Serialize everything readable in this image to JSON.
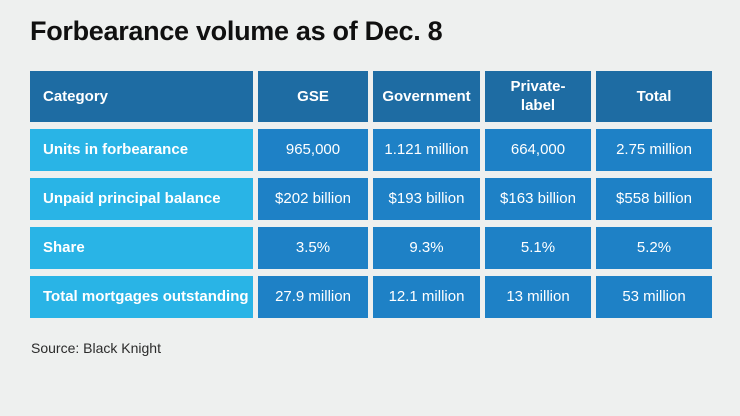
{
  "page": {
    "title": "Forbearance volume as of Dec. 8",
    "source": "Source: Black Knight"
  },
  "colors": {
    "background": "#eef0ef",
    "header_blue": "#1e6ca3",
    "category_cyan": "#29b4e6",
    "value_blue": "#1e81c6",
    "cell_text": "#ffffff",
    "title_text": "#101010"
  },
  "chart_data": {
    "type": "table",
    "title": "Forbearance volume as of Dec. 8",
    "columns": [
      "Category",
      "GSE",
      "Government",
      "Private-label",
      "Total"
    ],
    "rows": [
      {
        "label": "Units in forbearance",
        "values": [
          "965,000",
          "1.121 million",
          "664,000",
          "2.75 million"
        ]
      },
      {
        "label": "Unpaid principal balance",
        "values": [
          "$202 billion",
          "$193 billion",
          "$163 billion",
          "$558 billion"
        ]
      },
      {
        "label": "Share",
        "values": [
          "3.5%",
          "9.3%",
          "5.1%",
          "5.2%"
        ]
      },
      {
        "label": "Total mortgages outstanding",
        "values": [
          "27.9 million",
          "12.1 million",
          "13 million",
          "53 million"
        ]
      }
    ],
    "source": "Black Knight",
    "layout": {
      "grid": "off",
      "legend": "none"
    }
  }
}
